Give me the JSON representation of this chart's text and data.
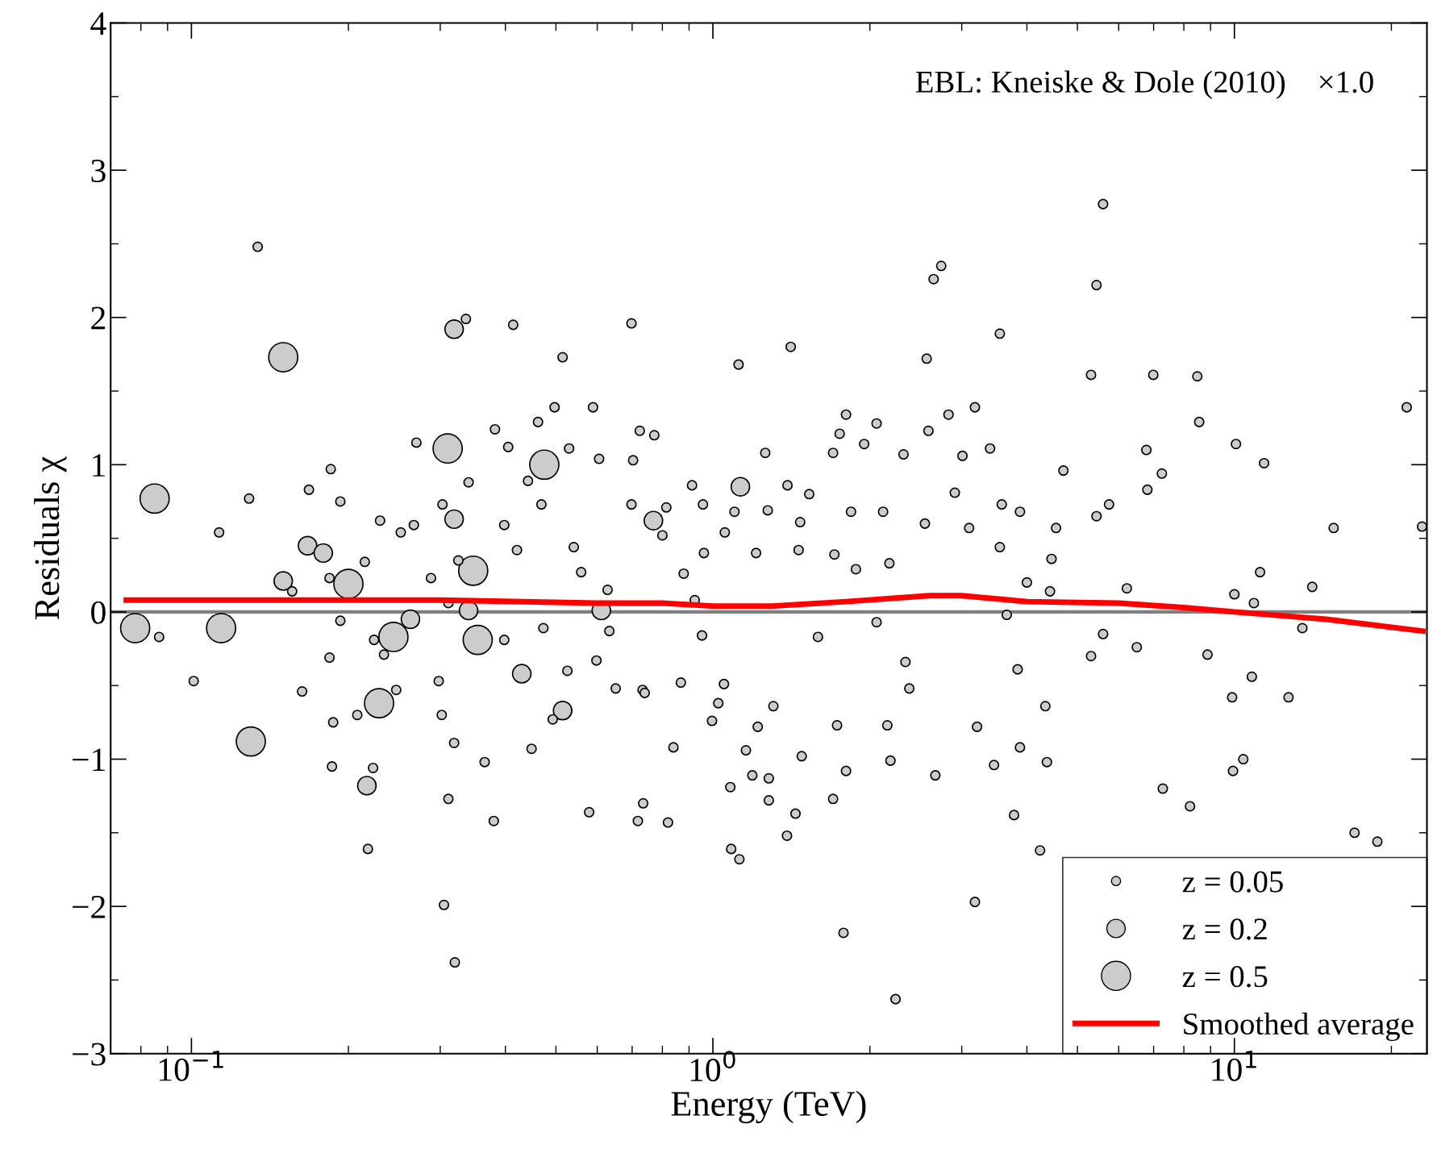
{
  "chart_data": {
    "type": "bubble",
    "xlabel": "Energy (TeV)",
    "ylabel": "Residuals χ",
    "log": "x",
    "xlim": [
      0.07,
      23.4
    ],
    "xticks": [
      {
        "value": 0.1,
        "label": "10$^{−1}$"
      },
      {
        "value": 1,
        "label": "10$^{0}$"
      },
      {
        "value": 10,
        "label": "10$^{1}$"
      }
    ],
    "ylim": [
      -3,
      4
    ],
    "yticks": [
      {
        "value": -3,
        "label": "−3"
      },
      {
        "value": -2,
        "label": "−2"
      },
      {
        "value": -1,
        "label": "−1"
      },
      0,
      1,
      2,
      3,
      4
    ],
    "grid": false,
    "legend": "bottom right",
    "size_legend": [
      {
        "value": 0.05,
        "label": "z = 0.05"
      },
      {
        "value": 0.2,
        "label": "z = 0.2"
      },
      {
        "value": 0.5,
        "label": "z = 0.5"
      }
    ],
    "ref_lines": [
      {
        "axis": "y",
        "value": 0,
        "color": "#808080"
      }
    ],
    "annotations": [
      "EBL: Kneiske & Dole (2010)    ×1.0"
    ],
    "series": [
      {
        "color": "#cccccc",
        "x": [
          0.085,
          0.078,
          0.114,
          0.13,
          0.15,
          0.2,
          0.229,
          0.31,
          0.347,
          0.354,
          0.475,
          0.244,
          0.319,
          0.167,
          0.179,
          0.15,
          0.263,
          0.217,
          1.129,
          0.43,
          0.515,
          0.769,
          0.319,
          0.611,
          0.34,
          0.134,
          0.0867,
          0.101,
          0.113,
          0.129,
          0.156,
          0.163,
          0.168,
          0.185,
          0.184,
          0.184,
          0.187,
          0.186,
          0.193,
          0.193,
          0.208,
          0.215,
          0.218,
          0.223,
          0.23,
          0.224,
          0.234,
          0.247,
          0.252,
          0.27,
          0.267,
          0.288,
          0.298,
          0.303,
          0.311,
          0.305,
          0.311,
          0.302,
          0.32,
          0.319,
          0.325,
          0.336,
          0.34,
          0.365,
          0.38,
          0.382,
          0.398,
          0.405,
          0.398,
          0.414,
          0.421,
          0.449,
          0.442,
          0.462,
          0.469,
          0.473,
          0.493,
          0.497,
          0.515,
          0.526,
          0.53,
          0.541,
          0.559,
          0.579,
          0.589,
          0.598,
          0.605,
          0.628,
          0.633,
          0.651,
          0.698,
          0.698,
          0.703,
          0.724,
          0.718,
          0.735,
          0.733,
          0.74,
          0.772,
          0.8,
          0.814,
          0.82,
          0.84,
          0.868,
          0.879,
          0.912,
          0.923,
          0.953,
          0.957,
          0.961,
          0.996,
          1.024,
          1.05,
          1.054,
          1.08,
          1.084,
          1.1,
          1.12,
          1.124,
          1.157,
          1.19,
          1.21,
          1.219,
          1.26,
          1.274,
          1.28,
          1.28,
          1.306,
          1.387,
          1.39,
          1.41,
          1.44,
          1.46,
          1.47,
          1.48,
          1.53,
          1.59,
          1.7,
          1.7,
          1.71,
          1.75,
          1.78,
          1.8,
          1.73,
          1.8,
          1.84,
          1.88,
          1.95,
          2.06,
          2.06,
          2.12,
          2.18,
          2.24,
          2.19,
          2.16,
          2.32,
          2.34,
          2.38,
          2.55,
          2.57,
          2.59,
          2.65,
          2.74,
          2.67,
          2.83,
          2.91,
          3.01,
          3.1,
          3.18,
          3.18,
          3.21,
          3.4,
          3.46,
          3.55,
          3.55,
          3.58,
          3.66,
          3.78,
          3.88,
          3.84,
          3.88,
          4.0,
          4.24,
          4.34,
          4.43,
          4.46,
          4.55,
          4.7,
          4.37,
          5.31,
          5.44,
          5.6,
          5.75,
          5.44,
          5.31,
          5.6,
          6.22,
          6.5,
          6.78,
          6.99,
          7.26,
          7.29,
          6.81,
          8.22,
          8.49,
          8.56,
          8.88,
          10.07,
          9.9,
          9.94,
          10.4,
          10.8,
          10.9,
          11.2,
          11.4,
          12.7,
          13.5,
          14.1,
          15.5,
          17.0,
          18.8,
          21.4,
          22.9,
          10.0
        ],
        "values": [
          0.77,
          -0.11,
          -0.11,
          -0.88,
          1.73,
          0.19,
          -0.62,
          1.11,
          0.28,
          -0.19,
          1.0,
          -0.17,
          1.92,
          0.45,
          0.4,
          0.21,
          -0.05,
          -1.18,
          0.85,
          -0.42,
          -0.67,
          0.62,
          0.63,
          0.01,
          0.01,
          2.48,
          -0.17,
          -0.47,
          0.54,
          0.77,
          0.14,
          -0.54,
          0.83,
          0.97,
          0.23,
          -0.31,
          -0.75,
          -1.05,
          0.75,
          -0.06,
          -0.7,
          0.34,
          -1.61,
          -1.06,
          0.62,
          -0.19,
          -0.29,
          -0.53,
          0.54,
          1.15,
          0.59,
          0.23,
          -0.47,
          0.73,
          0.06,
          -1.99,
          -1.27,
          -0.7,
          -2.38,
          -0.89,
          0.35,
          1.99,
          0.88,
          -1.02,
          -1.42,
          1.24,
          0.59,
          1.12,
          -0.19,
          1.95,
          0.42,
          -0.93,
          0.89,
          1.29,
          0.73,
          -0.11,
          -0.73,
          1.39,
          1.73,
          -0.4,
          1.11,
          0.44,
          0.27,
          -1.36,
          1.39,
          -0.33,
          1.04,
          0.15,
          -0.13,
          -0.52,
          1.96,
          0.73,
          1.03,
          1.23,
          -1.42,
          -1.3,
          -0.53,
          -0.55,
          1.2,
          0.52,
          0.71,
          -1.43,
          -0.92,
          -0.48,
          0.26,
          0.86,
          0.08,
          -0.16,
          0.73,
          0.4,
          -0.74,
          -0.62,
          -0.49,
          0.54,
          -1.19,
          -1.61,
          0.68,
          1.68,
          -1.68,
          -0.94,
          -1.11,
          0.4,
          -0.78,
          1.08,
          0.69,
          -1.13,
          -1.28,
          -0.64,
          -1.52,
          0.86,
          1.8,
          -1.37,
          0.42,
          0.61,
          -0.98,
          0.8,
          -0.17,
          1.08,
          -1.27,
          0.39,
          1.21,
          -2.18,
          1.34,
          -0.77,
          -1.08,
          0.68,
          0.29,
          1.14,
          1.28,
          -0.07,
          0.68,
          0.33,
          -2.63,
          -1.01,
          -0.77,
          1.07,
          -0.34,
          -0.52,
          0.6,
          1.72,
          1.23,
          2.26,
          2.35,
          -1.11,
          1.34,
          0.81,
          1.06,
          0.57,
          1.39,
          -1.97,
          -0.78,
          1.11,
          -1.04,
          1.89,
          0.44,
          0.73,
          -0.02,
          -1.38,
          0.68,
          -0.39,
          -0.92,
          0.2,
          -1.62,
          -0.64,
          0.14,
          0.36,
          0.57,
          0.96,
          -1.02,
          1.61,
          2.22,
          2.77,
          0.73,
          0.65,
          -0.3,
          -0.15,
          0.16,
          -0.24,
          1.1,
          1.61,
          0.94,
          -1.2,
          0.83,
          -1.32,
          1.6,
          1.29,
          -0.29,
          1.14,
          -0.58,
          -1.08,
          -1.0,
          -0.44,
          0.06,
          0.27,
          1.01,
          -0.58,
          -0.11,
          0.17,
          0.57,
          -1.5,
          -1.56,
          1.39,
          0.58,
          0.12
        ],
        "sizes": [
          0.5,
          0.5,
          0.5,
          0.5,
          0.5,
          0.5,
          0.5,
          0.5,
          0.5,
          0.5,
          0.5,
          0.5,
          0.2,
          0.2,
          0.2,
          0.2,
          0.2,
          0.2,
          0.2,
          0.2,
          0.2,
          0.2,
          0.2,
          0.2,
          0.2,
          0.05,
          0.05,
          0.05,
          0.05,
          0.05,
          0.05,
          0.05,
          0.05,
          0.05,
          0.05,
          0.05,
          0.05,
          0.05,
          0.05,
          0.05,
          0.05,
          0.05,
          0.05,
          0.05,
          0.05,
          0.05,
          0.05,
          0.05,
          0.05,
          0.05,
          0.05,
          0.05,
          0.05,
          0.05,
          0.05,
          0.05,
          0.05,
          0.05,
          0.05,
          0.05,
          0.05,
          0.05,
          0.05,
          0.05,
          0.05,
          0.05,
          0.05,
          0.05,
          0.05,
          0.05,
          0.05,
          0.05,
          0.05,
          0.05,
          0.05,
          0.05,
          0.05,
          0.05,
          0.05,
          0.05,
          0.05,
          0.05,
          0.05,
          0.05,
          0.05,
          0.05,
          0.05,
          0.05,
          0.05,
          0.05,
          0.05,
          0.05,
          0.05,
          0.05,
          0.05,
          0.05,
          0.05,
          0.05,
          0.05,
          0.05,
          0.05,
          0.05,
          0.05,
          0.05,
          0.05,
          0.05,
          0.05,
          0.05,
          0.05,
          0.05,
          0.05,
          0.05,
          0.05,
          0.05,
          0.05,
          0.05,
          0.05,
          0.05,
          0.05,
          0.05,
          0.05,
          0.05,
          0.05,
          0.05,
          0.05,
          0.05,
          0.05,
          0.05,
          0.05,
          0.05,
          0.05,
          0.05,
          0.05,
          0.05,
          0.05,
          0.05,
          0.05,
          0.05,
          0.05,
          0.05,
          0.05,
          0.05,
          0.05,
          0.05,
          0.05,
          0.05,
          0.05,
          0.05,
          0.05,
          0.05,
          0.05,
          0.05,
          0.05,
          0.05,
          0.05,
          0.05,
          0.05,
          0.05,
          0.05,
          0.05,
          0.05,
          0.05,
          0.05,
          0.05,
          0.05,
          0.05,
          0.05,
          0.05,
          0.05,
          0.05,
          0.05,
          0.05,
          0.05,
          0.05,
          0.05,
          0.05,
          0.05,
          0.05,
          0.05,
          0.05,
          0.05,
          0.05,
          0.05,
          0.05,
          0.05,
          0.05,
          0.05,
          0.05,
          0.05,
          0.05,
          0.05,
          0.05,
          0.05,
          0.05,
          0.05,
          0.05,
          0.05,
          0.05,
          0.05,
          0.05,
          0.05,
          0.05,
          0.05,
          0.05,
          0.05,
          0.05,
          0.05,
          0.05,
          0.05,
          0.05,
          0.05,
          0.05,
          0.05,
          0.05,
          0.05,
          0.05,
          0.05,
          0.05,
          0.05,
          0.05,
          0.05,
          0.05,
          0.05,
          0.05
        ]
      },
      {
        "type": "line",
        "name": "Smoothed average",
        "color": "#ff0000",
        "x": [
          0.075,
          0.3,
          0.6,
          0.8,
          1.0,
          1.3,
          1.8,
          2.6,
          3.0,
          4.0,
          6.0,
          8.0,
          10,
          15,
          23
        ],
        "values": [
          0.08,
          0.08,
          0.06,
          0.06,
          0.04,
          0.04,
          0.07,
          0.11,
          0.11,
          0.07,
          0.06,
          0.03,
          0.0,
          -0.05,
          -0.13
        ]
      }
    ]
  }
}
